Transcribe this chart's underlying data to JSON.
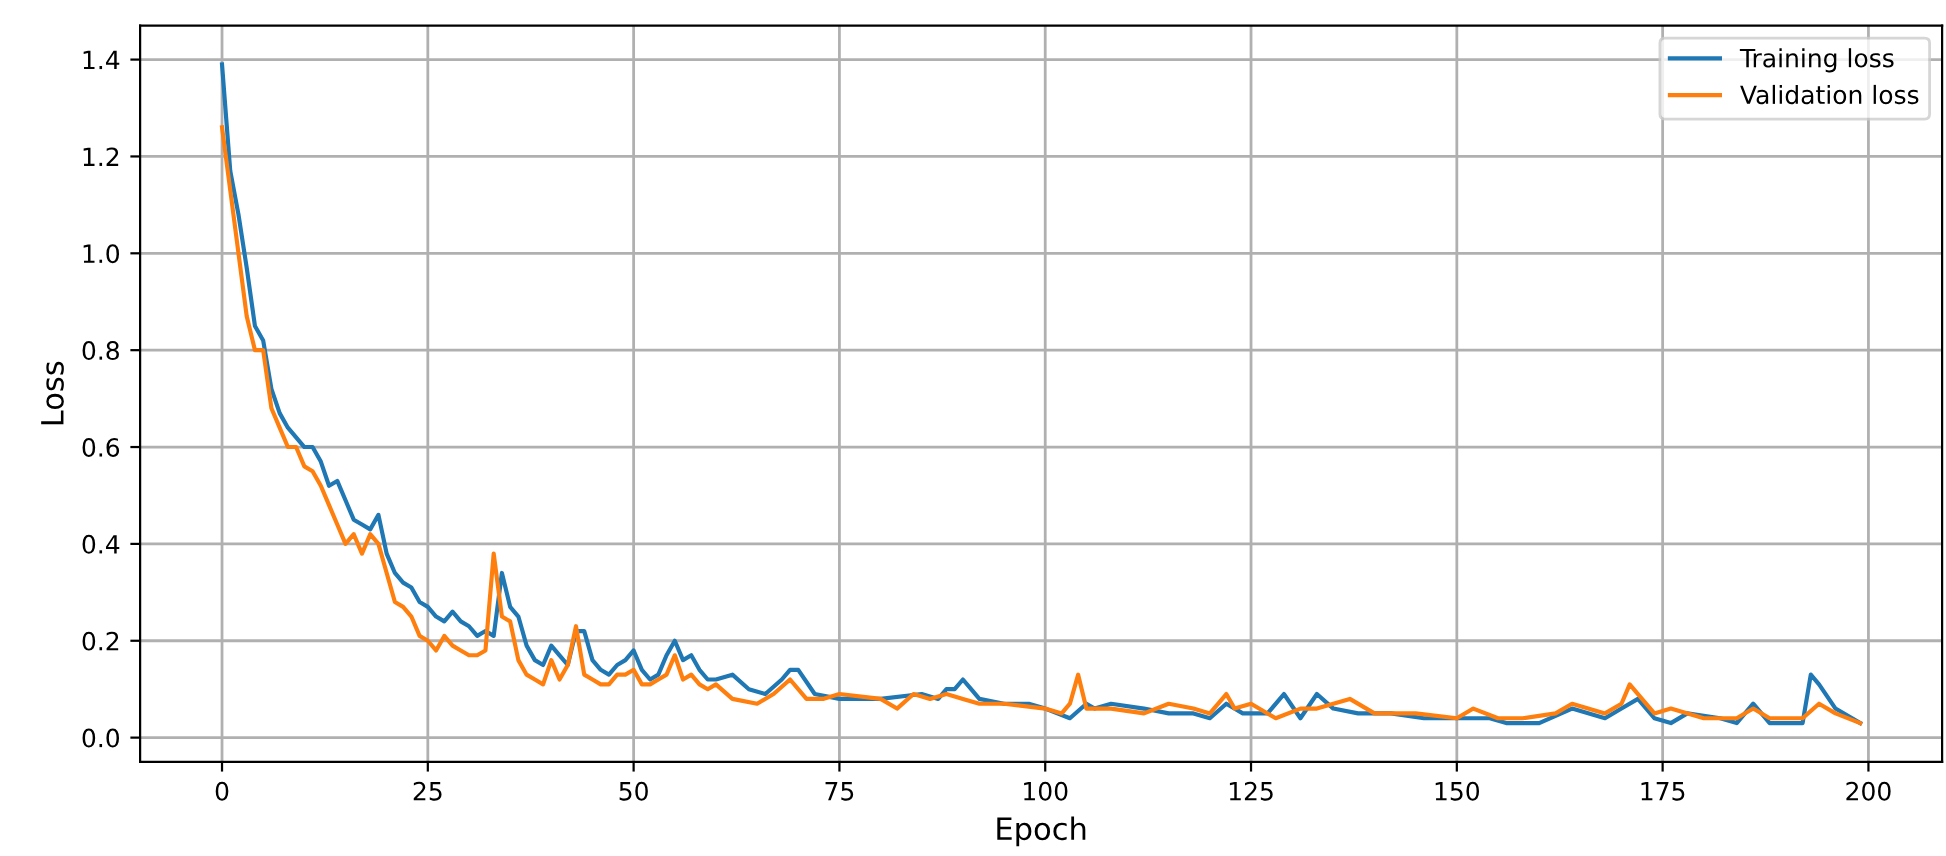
{
  "chart_data": {
    "type": "line",
    "xlabel": "Epoch",
    "ylabel": "Loss",
    "xlim": [
      -9.95,
      208.95
    ],
    "ylim": [
      -0.05,
      1.47
    ],
    "xticks": [
      0,
      25,
      50,
      75,
      100,
      125,
      150,
      175,
      200
    ],
    "yticks": [
      {
        "value": 0,
        "label": "0.0"
      },
      {
        "value": 0.2,
        "label": "0.2"
      },
      {
        "value": 0.4,
        "label": "0.4"
      },
      {
        "value": 0.6,
        "label": "0.6"
      },
      {
        "value": 0.8,
        "label": "0.8"
      },
      {
        "value": 1.0,
        "label": "1.0"
      },
      {
        "value": 1.2,
        "label": "1.2"
      },
      {
        "value": 1.4,
        "label": "1.4"
      }
    ],
    "grid": true,
    "legend": "top right",
    "marker": "none",
    "line_style": "solid",
    "series": [
      {
        "name": "Training loss",
        "color": "#1f77b4",
        "x": [
          0,
          1,
          2,
          3,
          4,
          5,
          6,
          7,
          8,
          9,
          10,
          11,
          12,
          13,
          14,
          15,
          16,
          17,
          18,
          19,
          20,
          21,
          22,
          23,
          24,
          25,
          26,
          27,
          28,
          29,
          30,
          31,
          32,
          33,
          34,
          35,
          36,
          37,
          38,
          39,
          40,
          41,
          42,
          43,
          44,
          45,
          46,
          47,
          48,
          49,
          50,
          51,
          52,
          53,
          54,
          55,
          56,
          57,
          58,
          59,
          60,
          62,
          64,
          66,
          68,
          69,
          70,
          72,
          75,
          80,
          85,
          87,
          88,
          89,
          90,
          91,
          92,
          95,
          98,
          100,
          103,
          105,
          106,
          108,
          112,
          115,
          118,
          120,
          122,
          124,
          127,
          129,
          131,
          133,
          135,
          138,
          142,
          146,
          150,
          154,
          156,
          160,
          164,
          168,
          170,
          172,
          174,
          176,
          178,
          182,
          184,
          186,
          188,
          192,
          193,
          194,
          196,
          199
        ],
        "values": [
          1.39,
          1.17,
          1.08,
          0.97,
          0.85,
          0.82,
          0.72,
          0.67,
          0.64,
          0.62,
          0.6,
          0.6,
          0.57,
          0.52,
          0.53,
          0.49,
          0.45,
          0.44,
          0.43,
          0.46,
          0.38,
          0.34,
          0.32,
          0.31,
          0.28,
          0.27,
          0.25,
          0.24,
          0.26,
          0.24,
          0.23,
          0.21,
          0.22,
          0.21,
          0.34,
          0.27,
          0.25,
          0.19,
          0.16,
          0.15,
          0.19,
          0.17,
          0.15,
          0.22,
          0.22,
          0.16,
          0.14,
          0.13,
          0.15,
          0.16,
          0.18,
          0.14,
          0.12,
          0.13,
          0.17,
          0.2,
          0.16,
          0.17,
          0.14,
          0.12,
          0.12,
          0.13,
          0.1,
          0.09,
          0.12,
          0.14,
          0.14,
          0.09,
          0.08,
          0.08,
          0.09,
          0.08,
          0.1,
          0.1,
          0.12,
          0.1,
          0.08,
          0.07,
          0.07,
          0.06,
          0.04,
          0.07,
          0.06,
          0.07,
          0.06,
          0.05,
          0.05,
          0.04,
          0.07,
          0.05,
          0.05,
          0.09,
          0.04,
          0.09,
          0.06,
          0.05,
          0.05,
          0.04,
          0.04,
          0.04,
          0.03,
          0.03,
          0.06,
          0.04,
          0.06,
          0.08,
          0.04,
          0.03,
          0.05,
          0.04,
          0.03,
          0.07,
          0.03,
          0.03,
          0.13,
          0.11,
          0.06,
          0.03
        ]
      },
      {
        "name": "Validation loss",
        "color": "#ff7f0e",
        "x": [
          0,
          1,
          2,
          3,
          4,
          5,
          6,
          7,
          8,
          9,
          10,
          11,
          12,
          13,
          14,
          15,
          16,
          17,
          18,
          19,
          20,
          21,
          22,
          23,
          24,
          25,
          26,
          27,
          28,
          29,
          30,
          31,
          32,
          33,
          34,
          35,
          36,
          37,
          38,
          39,
          40,
          41,
          42,
          43,
          44,
          45,
          46,
          47,
          48,
          49,
          50,
          51,
          52,
          53,
          54,
          55,
          56,
          57,
          58,
          59,
          60,
          62,
          65,
          67,
          69,
          71,
          73,
          75,
          80,
          82,
          84,
          86,
          88,
          90,
          92,
          95,
          100,
          102,
          103,
          104,
          105,
          108,
          112,
          115,
          118,
          120,
          122,
          123,
          125,
          128,
          131,
          133,
          137,
          140,
          145,
          150,
          152,
          155,
          158,
          162,
          164,
          168,
          170,
          171,
          172,
          174,
          176,
          180,
          184,
          186,
          188,
          192,
          194,
          196,
          199
        ],
        "values": [
          1.26,
          1.13,
          1.0,
          0.87,
          0.8,
          0.8,
          0.68,
          0.64,
          0.6,
          0.6,
          0.56,
          0.55,
          0.52,
          0.48,
          0.44,
          0.4,
          0.42,
          0.38,
          0.42,
          0.4,
          0.34,
          0.28,
          0.27,
          0.25,
          0.21,
          0.2,
          0.18,
          0.21,
          0.19,
          0.18,
          0.17,
          0.17,
          0.18,
          0.38,
          0.25,
          0.24,
          0.16,
          0.13,
          0.12,
          0.11,
          0.16,
          0.12,
          0.15,
          0.23,
          0.13,
          0.12,
          0.11,
          0.11,
          0.13,
          0.13,
          0.14,
          0.11,
          0.11,
          0.12,
          0.13,
          0.17,
          0.12,
          0.13,
          0.11,
          0.1,
          0.11,
          0.08,
          0.07,
          0.09,
          0.12,
          0.08,
          0.08,
          0.09,
          0.08,
          0.06,
          0.09,
          0.08,
          0.09,
          0.08,
          0.07,
          0.07,
          0.06,
          0.05,
          0.07,
          0.13,
          0.06,
          0.06,
          0.05,
          0.07,
          0.06,
          0.05,
          0.09,
          0.06,
          0.07,
          0.04,
          0.06,
          0.06,
          0.08,
          0.05,
          0.05,
          0.04,
          0.06,
          0.04,
          0.04,
          0.05,
          0.07,
          0.05,
          0.07,
          0.11,
          0.09,
          0.05,
          0.06,
          0.04,
          0.04,
          0.06,
          0.04,
          0.04,
          0.07,
          0.05,
          0.03
        ]
      }
    ]
  }
}
